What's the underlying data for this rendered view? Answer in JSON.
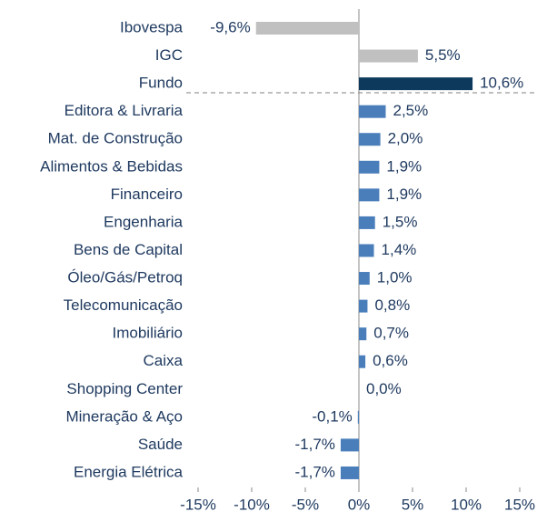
{
  "chart_data": {
    "type": "barh",
    "categories": [
      "Ibovespa",
      "IGC",
      "Fundo",
      "Editora & Livraria",
      "Mat. de Construção",
      "Alimentos & Bebidas",
      "Financeiro",
      "Engenharia",
      "Bens de Capital",
      "Óleo/Gás/Petroq",
      "Telecomunicação",
      "Imobiliário",
      "Caixa",
      "Shopping Center",
      "Mineração & Aço",
      "Saúde",
      "Energia Elétrica"
    ],
    "values": [
      -9.6,
      5.5,
      10.6,
      2.5,
      2.0,
      1.9,
      1.9,
      1.5,
      1.4,
      1.0,
      0.8,
      0.7,
      0.6,
      0.0,
      -0.1,
      -1.7,
      -1.7
    ],
    "value_labels": [
      "-9,6%",
      "5,5%",
      "10,6%",
      "2,5%",
      "2,0%",
      "1,9%",
      "1,9%",
      "1,5%",
      "1,4%",
      "1,0%",
      "0,8%",
      "0,7%",
      "0,6%",
      "0,0%",
      "-0,1%",
      "-1,7%",
      "-1,7%"
    ],
    "colors": [
      "#c0c0c0",
      "#c0c0c0",
      "#0d3a5c",
      "#4a7ebb",
      "#4a7ebb",
      "#4a7ebb",
      "#4a7ebb",
      "#4a7ebb",
      "#4a7ebb",
      "#4a7ebb",
      "#4a7ebb",
      "#4a7ebb",
      "#4a7ebb",
      "#4a7ebb",
      "#4a7ebb",
      "#4a7ebb",
      "#4a7ebb"
    ],
    "xlim": [
      -15,
      15
    ],
    "xticks": [
      {
        "value": -15,
        "label": "-15%"
      },
      {
        "value": -10,
        "label": "-10%"
      },
      {
        "value": -5,
        "label": "-5%"
      },
      {
        "value": 0,
        "label": "0%"
      },
      {
        "value": 5,
        "label": "5%"
      },
      {
        "value": 10,
        "label": "10%"
      },
      {
        "value": 15,
        "label": "15%"
      }
    ]
  }
}
